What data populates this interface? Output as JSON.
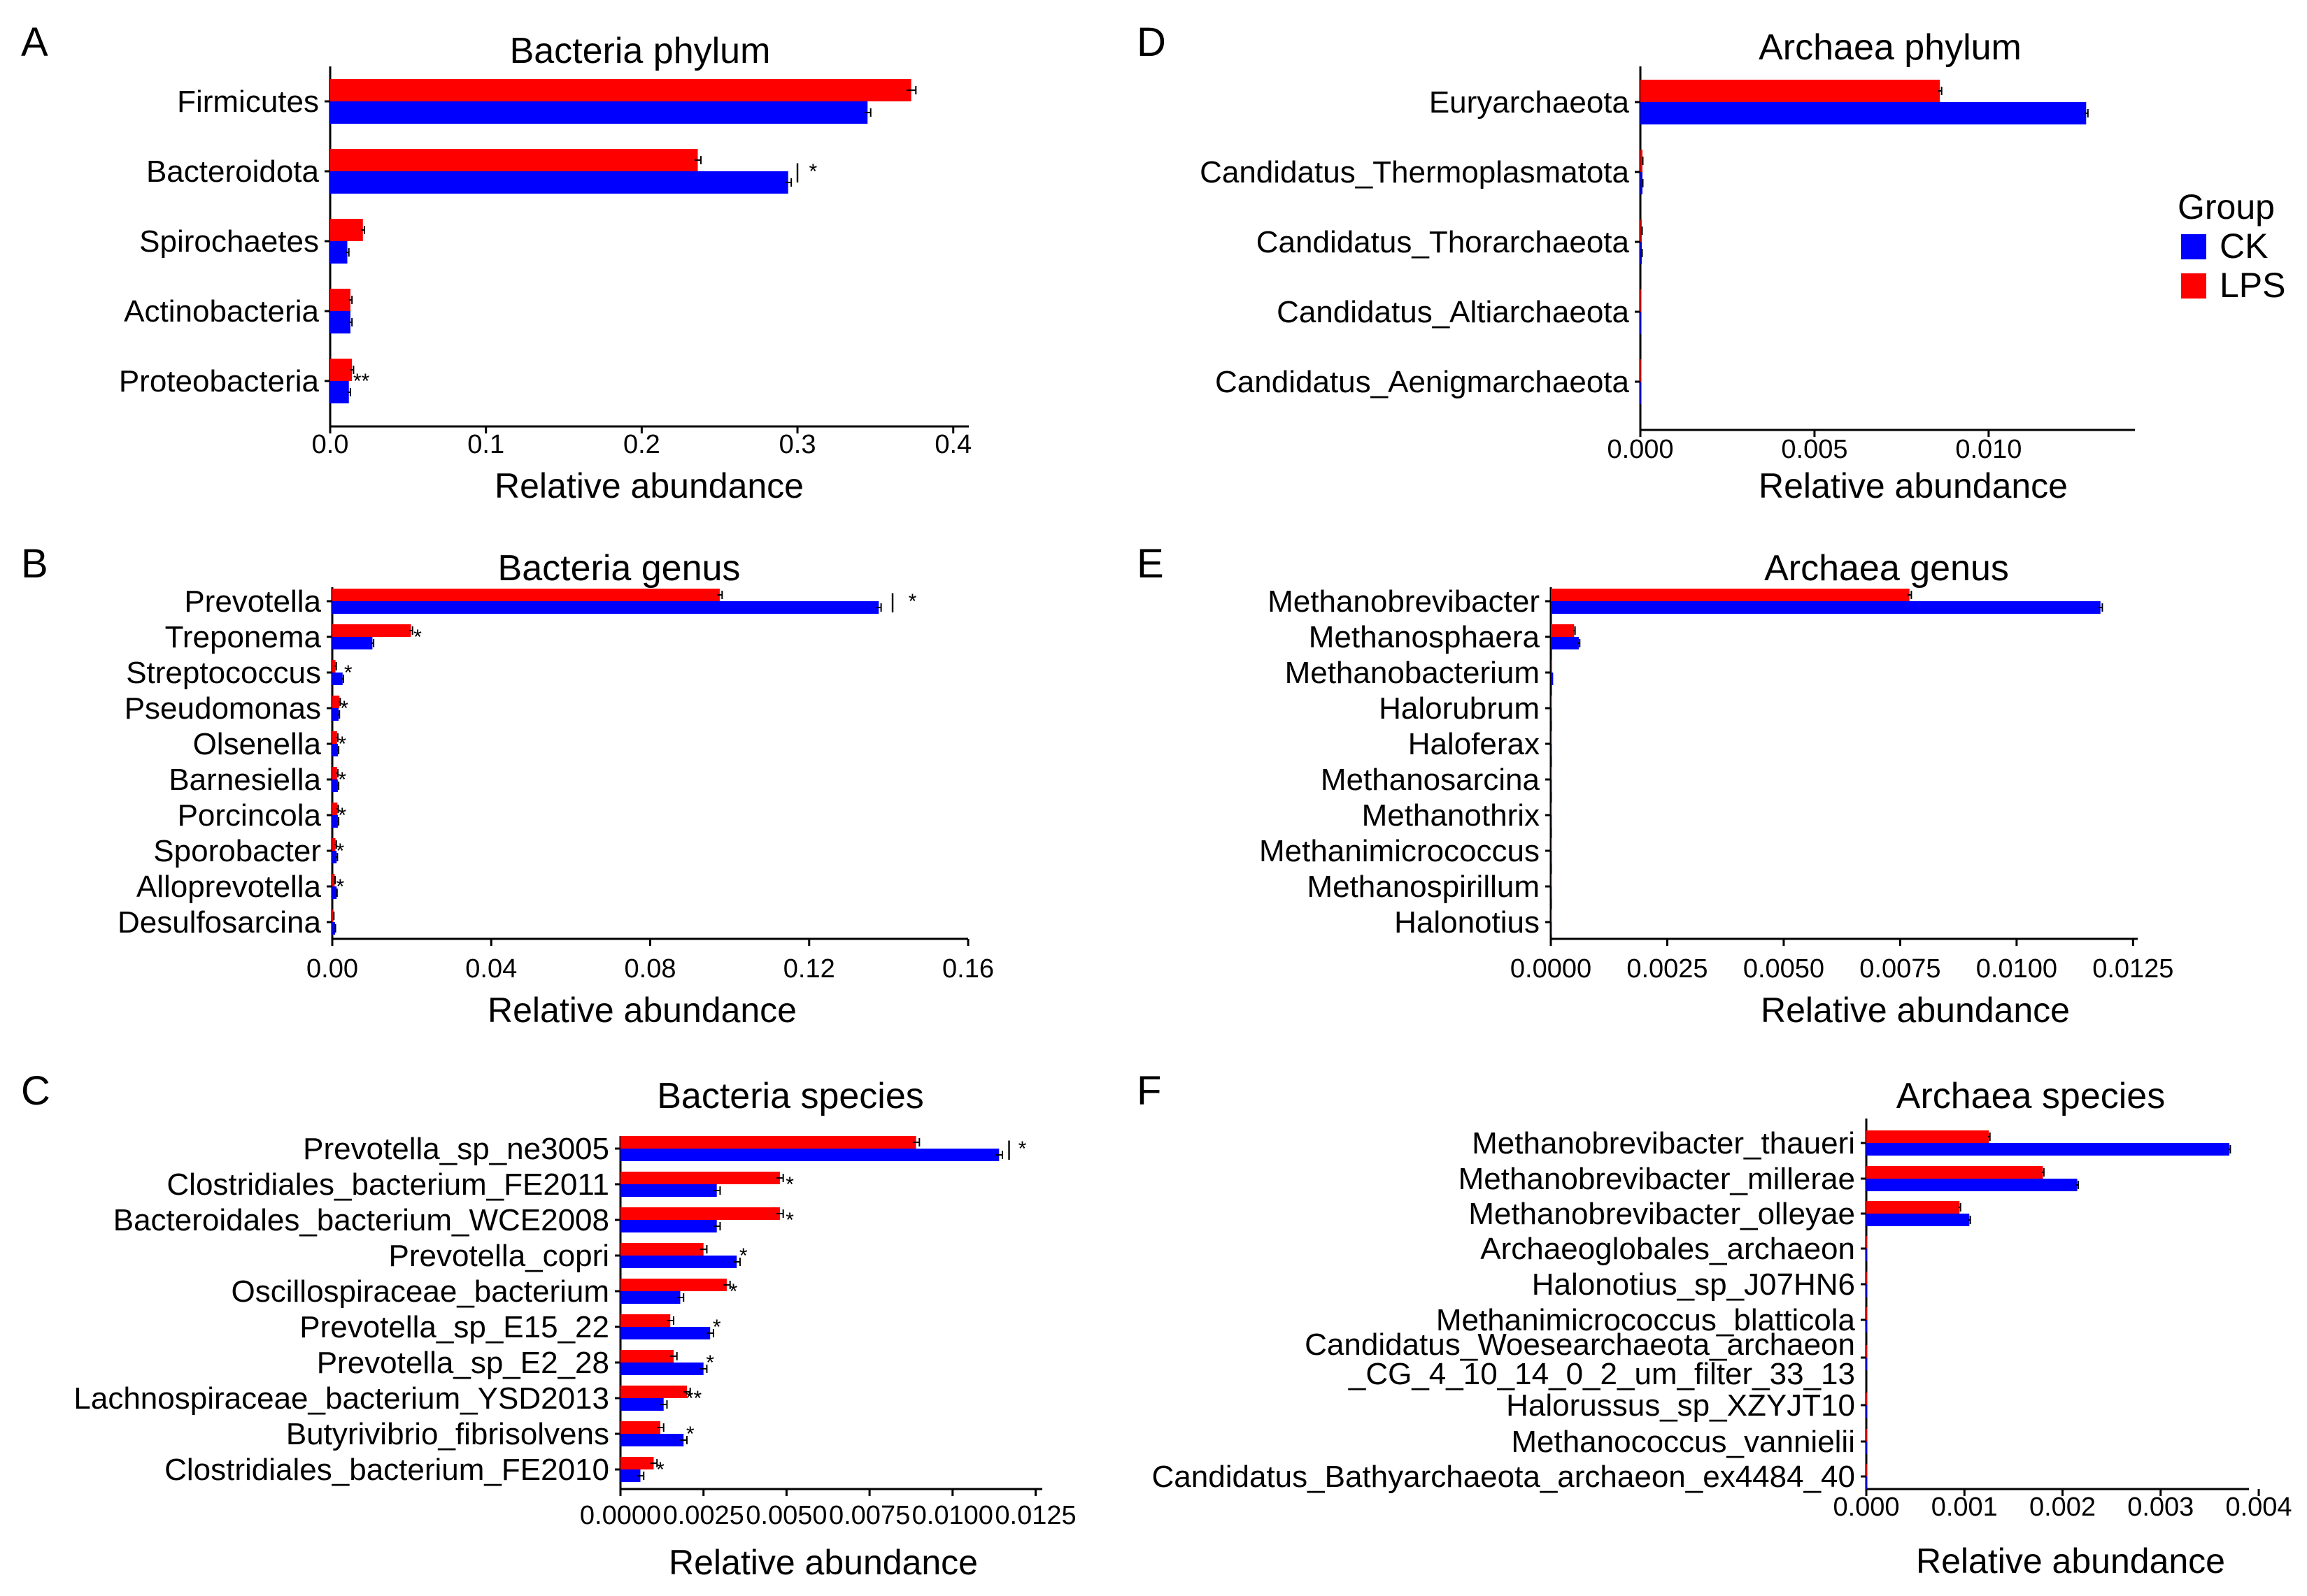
{
  "legend": {
    "title": "Group",
    "items": [
      {
        "label": "CK",
        "color": "#0000ff"
      },
      {
        "label": "LPS",
        "color": "#ff0000"
      }
    ]
  },
  "chart_data": [
    {
      "panel": "A",
      "type": "bar",
      "orientation": "horizontal",
      "title": "Bacteria phylum",
      "xlabel": "Relative abundance",
      "ylabel": "",
      "categories": [
        "Firmicutes",
        "Bacteroidota",
        "Spirochaetes",
        "Actinobacteria",
        "Proteobacteria"
      ],
      "series": [
        {
          "name": "LPS",
          "color": "#ff0000",
          "values": [
            0.373,
            0.236,
            0.021,
            0.013,
            0.014
          ],
          "errors": [
            0.003,
            0.002,
            0.001,
            0.001,
            0.001
          ]
        },
        {
          "name": "CK",
          "color": "#0000ff",
          "values": [
            0.345,
            0.294,
            0.011,
            0.013,
            0.012
          ],
          "errors": [
            0.002,
            0.002,
            0.001,
            0.001,
            0.001
          ]
        }
      ],
      "annotations": [
        {
          "category": "Bacteroidota",
          "x": 0.3,
          "text": "|"
        },
        {
          "category": "Bacteroidota",
          "x": 0.31,
          "text": "*"
        },
        {
          "category": "Proteobacteria",
          "x": 0.02,
          "text": "**"
        }
      ],
      "xlim": [
        0,
        0.41
      ],
      "xticks": [
        0,
        0.1,
        0.2,
        0.3,
        0.4
      ],
      "xticklabels": [
        "0.0",
        "0.1",
        "0.2",
        "0.3",
        "0.4"
      ]
    },
    {
      "panel": "B",
      "type": "bar",
      "orientation": "horizontal",
      "title": "Bacteria genus",
      "xlabel": "Relative abundance",
      "ylabel": "",
      "categories": [
        "Prevotella",
        "Treponema",
        "Streptococcus",
        "Pseudomonas",
        "Olsenella",
        "Barnesiella",
        "Porcincola",
        "Sporobacter",
        "Alloprevotella",
        "Desulfosarcina"
      ],
      "series": [
        {
          "name": "LPS",
          "color": "#ff0000",
          "values": [
            0.0975,
            0.0198,
            0.0008,
            0.0018,
            0.0012,
            0.0012,
            0.0013,
            0.0008,
            0.0006,
            0.0003
          ],
          "errors": [
            0.0006,
            0.0004,
            0.0002,
            0.0002,
            0.0002,
            0.0002,
            0.0002,
            0.0002,
            0.0001,
            0.0001
          ]
        },
        {
          "name": "CK",
          "color": "#0000ff",
          "values": [
            0.1375,
            0.0101,
            0.0026,
            0.0016,
            0.0014,
            0.0014,
            0.0014,
            0.0011,
            0.0011,
            0.0007
          ],
          "errors": [
            0.0006,
            0.0003,
            0.0002,
            0.0002,
            0.0002,
            0.0002,
            0.0002,
            0.0002,
            0.0001,
            0.0001
          ]
        }
      ],
      "annotations": [
        {
          "category": "Prevotella",
          "x": 0.141,
          "text": "|"
        },
        {
          "category": "Prevotella",
          "x": 0.146,
          "text": "*"
        },
        {
          "category": "Treponema",
          "x": 0.0215,
          "text": "*"
        },
        {
          "category": "Streptococcus",
          "x": 0.004,
          "text": "*"
        },
        {
          "category": "Pseudomonas",
          "x": 0.003,
          "text": "*"
        },
        {
          "category": "Olsenella",
          "x": 0.0025,
          "text": "*"
        },
        {
          "category": "Barnesiella",
          "x": 0.0025,
          "text": "*"
        },
        {
          "category": "Porcincola",
          "x": 0.0025,
          "text": "*"
        },
        {
          "category": "Sporobacter",
          "x": 0.002,
          "text": "*"
        },
        {
          "category": "Alloprevotella",
          "x": 0.002,
          "text": "*"
        }
      ],
      "xlim": [
        0,
        0.16
      ],
      "xticks": [
        0,
        0.04,
        0.08,
        0.12,
        0.16
      ],
      "xticklabels": [
        "0.00",
        "0.04",
        "0.08",
        "0.12",
        "0.16"
      ]
    },
    {
      "panel": "C",
      "type": "bar",
      "orientation": "horizontal",
      "title": "Bacteria species",
      "xlabel": "Relative abundance",
      "ylabel": "",
      "categories": [
        "Prevotella_sp_ne3005",
        "Clostridiales_bacterium_FE2011",
        "Bacteroidales_bacterium_WCE2008",
        "Prevotella_copri",
        "Oscillospiraceae_bacterium",
        "Prevotella_sp_E15_22",
        "Prevotella_sp_E2_28",
        "Lachnospiraceae_bacterium_YSD2013",
        "Butyrivibrio_fibrisolvens",
        "Clostridiales_bacterium_FE2010"
      ],
      "series": [
        {
          "name": "LPS",
          "color": "#ff0000",
          "values": [
            0.0089,
            0.0048,
            0.0048,
            0.0025,
            0.0032,
            0.0015,
            0.0016,
            0.002,
            0.0012,
            0.001
          ],
          "errors": [
            0.0001,
            0.0001,
            0.0001,
            0.0001,
            0.0001,
            0.0001,
            0.0001,
            0.0001,
            0.0001,
            0.0001
          ]
        },
        {
          "name": "CK",
          "color": "#0000ff",
          "values": [
            0.0114,
            0.0029,
            0.0029,
            0.0035,
            0.0018,
            0.0027,
            0.0025,
            0.0013,
            0.0019,
            0.0006
          ],
          "errors": [
            0.0001,
            0.0001,
            0.0001,
            0.0001,
            0.0001,
            0.0001,
            0.0001,
            0.0001,
            0.0001,
            0.0001
          ]
        }
      ],
      "annotations": [
        {
          "category": "Prevotella_sp_ne3005",
          "x": 0.0117,
          "text": "|"
        },
        {
          "category": "Prevotella_sp_ne3005",
          "x": 0.0121,
          "text": "*"
        },
        {
          "category": "Clostridiales_bacterium_FE2011",
          "x": 0.0051,
          "text": "*"
        },
        {
          "category": "Bacteroidales_bacterium_WCE2008",
          "x": 0.0051,
          "text": "*"
        },
        {
          "category": "Prevotella_copri",
          "x": 0.0037,
          "text": "*"
        },
        {
          "category": "Oscillospiraceae_bacterium",
          "x": 0.0034,
          "text": "*"
        },
        {
          "category": "Prevotella_sp_E15_22",
          "x": 0.0029,
          "text": "*"
        },
        {
          "category": "Prevotella_sp_E2_28",
          "x": 0.0027,
          "text": "*"
        },
        {
          "category": "Lachnospiraceae_bacterium_YSD2013",
          "x": 0.0022,
          "text": "**"
        },
        {
          "category": "Butyrivibrio_fibrisolvens",
          "x": 0.0021,
          "text": "*"
        },
        {
          "category": "Clostridiales_bacterium_FE2010",
          "x": 0.0012,
          "text": "*"
        }
      ],
      "xlim": [
        0,
        0.0127
      ],
      "xticks": [
        0,
        0.0025,
        0.005,
        0.0075,
        0.01,
        0.0125
      ],
      "xticklabels": [
        "0.0000",
        "0.0025",
        "0.0050",
        "0.0075",
        "0.0100",
        "0.0125"
      ]
    },
    {
      "panel": "D",
      "type": "bar",
      "orientation": "horizontal",
      "title": "Archaea phylum",
      "xlabel": "Relative abundance",
      "ylabel": "",
      "categories": [
        "Euryarchaeota",
        "Candidatus_Thermoplasmatota",
        "Candidatus_Thorarchaeota",
        "Candidatus_Altiarchaeota",
        "Candidatus_Aenigmarchaeota"
      ],
      "series": [
        {
          "name": "LPS",
          "color": "#ff0000",
          "values": [
            0.0086,
            6e-05,
            4e-05,
            1e-05,
            1e-05
          ],
          "errors": [
            5e-05,
            1e-05,
            1e-05,
            0,
            0
          ]
        },
        {
          "name": "CK",
          "color": "#0000ff",
          "values": [
            0.0128,
            6e-05,
            4e-05,
            1e-05,
            1e-05
          ],
          "errors": [
            5e-05,
            1e-05,
            1e-05,
            0,
            0
          ]
        }
      ],
      "annotations": [],
      "xlim": [
        0,
        0.0142
      ],
      "xticks": [
        0,
        0.005,
        0.01
      ],
      "xticklabels": [
        "0.000",
        "0.005",
        "0.010"
      ]
    },
    {
      "panel": "E",
      "type": "bar",
      "orientation": "horizontal",
      "title": "Archaea genus",
      "xlabel": "Relative abundance",
      "ylabel": "",
      "categories": [
        "Methanobrevibacter",
        "Methanosphaera",
        "Methanobacterium",
        "Halorubrum",
        "Haloferax",
        "Methanosarcina",
        "Methanothrix",
        "Methanimicrococcus",
        "Methanospirillum",
        "Halonotius"
      ],
      "series": [
        {
          "name": "LPS",
          "color": "#ff0000",
          "values": [
            0.0077,
            0.0005,
            3e-05,
            2e-05,
            2e-05,
            2e-05,
            1e-05,
            1e-05,
            1e-05,
            1e-05
          ],
          "errors": [
            4e-05,
            2e-05,
            0,
            0,
            0,
            0,
            0,
            0,
            0,
            0
          ]
        },
        {
          "name": "CK",
          "color": "#0000ff",
          "values": [
            0.0118,
            0.0006,
            5e-05,
            2e-05,
            2e-05,
            2e-05,
            1e-05,
            1e-05,
            1e-05,
            1e-05
          ],
          "errors": [
            4e-05,
            2e-05,
            0,
            0,
            0,
            0,
            0,
            0,
            0,
            0
          ]
        }
      ],
      "annotations": [],
      "xlim": [
        0,
        0.0126
      ],
      "xticks": [
        0,
        0.0025,
        0.005,
        0.0075,
        0.01,
        0.0125
      ],
      "xticklabels": [
        "0.0000",
        "0.0025",
        "0.0050",
        "0.0075",
        "0.0100",
        "0.0125"
      ]
    },
    {
      "panel": "F",
      "type": "bar",
      "orientation": "horizontal",
      "title": "Archaea species",
      "xlabel": "Relative abundance",
      "ylabel": "",
      "categories": [
        "Methanobrevibacter_thaueri",
        "Methanobrevibacter_millerae",
        "Methanobrevibacter_olleyae",
        "Archaeoglobales_archaeon",
        "Halonotius_sp_J07HN6",
        "Methanimicrococcus_blatticola",
        "Candidatus_Woesearchaeota_archaeon\n_CG_4_10_14_0_2_um_filter_33_13",
        "Halorussus_sp_XZYJT10",
        "Methanococcus_vannielii",
        "Candidatus_Bathyarchaeota_archaeon_ex4484_40"
      ],
      "series": [
        {
          "name": "LPS",
          "color": "#ff0000",
          "values": [
            0.00125,
            0.0018,
            0.00095,
            5e-06,
            5e-06,
            5e-06,
            4e-06,
            3e-06,
            3e-06,
            3e-06
          ],
          "errors": [
            1e-05,
            1e-05,
            1e-05,
            0,
            0,
            0,
            0,
            0,
            0,
            0
          ]
        },
        {
          "name": "CK",
          "color": "#0000ff",
          "values": [
            0.0037,
            0.00215,
            0.00105,
            5e-06,
            5e-06,
            5e-06,
            4e-06,
            3e-06,
            3e-06,
            3e-06
          ],
          "errors": [
            1e-05,
            1e-05,
            1e-05,
            0,
            0,
            0,
            0,
            0,
            0,
            0
          ]
        }
      ],
      "annotations": [],
      "xlim": [
        0,
        0.0039
      ],
      "xticks": [
        0,
        0.001,
        0.002,
        0.003,
        0.004
      ],
      "xticklabels": [
        "0.000",
        "0.001",
        "0.002",
        "0.003",
        "0.004"
      ]
    }
  ]
}
